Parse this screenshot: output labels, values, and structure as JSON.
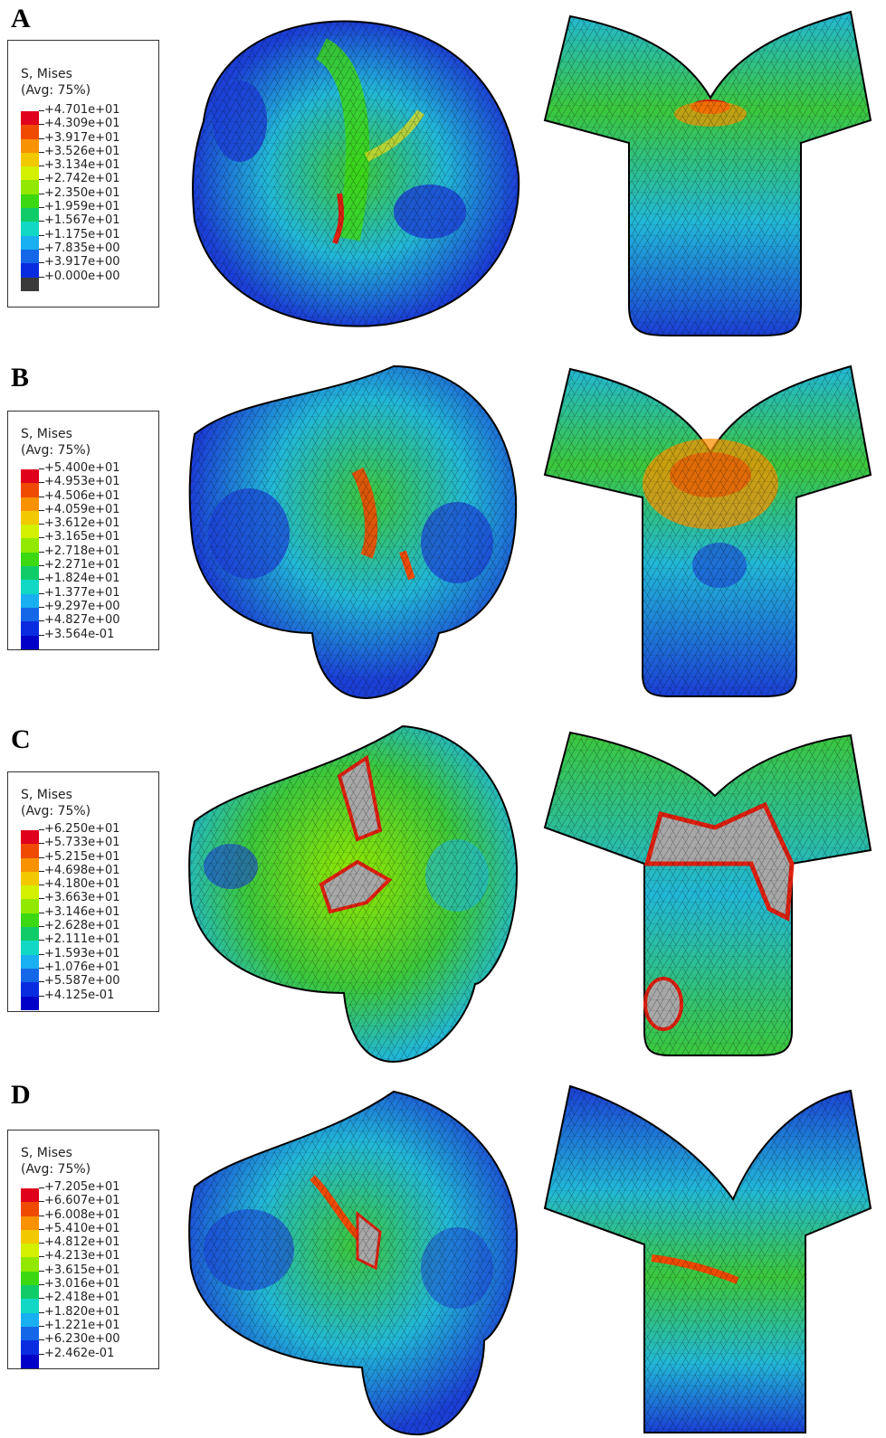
{
  "panels": [
    {
      "letter": "A",
      "legend_title_1": "S, Mises",
      "legend_title_2": "(Avg: 75%)",
      "legend_values": [
        "+4.701e+01",
        "+4.309e+01",
        "+3.917e+01",
        "+3.526e+01",
        "+3.134e+01",
        "+2.742e+01",
        "+2.350e+01",
        "+1.959e+01",
        "+1.567e+01",
        "+1.175e+01",
        "+7.835e+00",
        "+3.917e+00",
        "+0.000e+00"
      ]
    },
    {
      "letter": "B",
      "legend_title_1": "S, Mises",
      "legend_title_2": "(Avg: 75%)",
      "legend_values": [
        "+5.400e+01",
        "+4.953e+01",
        "+4.506e+01",
        "+4.059e+01",
        "+3.612e+01",
        "+3.165e+01",
        "+2.718e+01",
        "+2.271e+01",
        "+1.824e+01",
        "+1.377e+01",
        "+9.297e+00",
        "+4.827e+00",
        "+3.564e-01"
      ]
    },
    {
      "letter": "C",
      "legend_title_1": "S, Mises",
      "legend_title_2": "(Avg: 75%)",
      "legend_values": [
        "+6.250e+01",
        "+5.733e+01",
        "+5.215e+01",
        "+4.698e+01",
        "+4.180e+01",
        "+3.663e+01",
        "+3.146e+01",
        "+2.628e+01",
        "+2.111e+01",
        "+1.593e+01",
        "+1.076e+01",
        "+5.587e+00",
        "+4.125e-01"
      ]
    },
    {
      "letter": "D",
      "legend_title_1": "S, Mises",
      "legend_title_2": "(Avg: 75%)",
      "legend_values": [
        "+7.205e+01",
        "+6.607e+01",
        "+6.008e+01",
        "+5.410e+01",
        "+4.812e+01",
        "+4.213e+01",
        "+3.615e+01",
        "+3.016e+01",
        "+2.418e+01",
        "+1.820e+01",
        "+1.221e+01",
        "+6.230e+00",
        "+2.462e-01"
      ]
    }
  ],
  "colors": {
    "scale": [
      "#e0001c",
      "#f04a00",
      "#f89200",
      "#f2c800",
      "#d2f000",
      "#92e800",
      "#3cd812",
      "#10cc68",
      "#10d8c4",
      "#18b0f0",
      "#1468e8",
      "#0a2ce0",
      "#0000c8"
    ],
    "scale_bottom_A": "#3a3a3a",
    "mesh_blue": "#1b3fd6",
    "mesh_cyan": "#22b8d8",
    "mesh_green": "#3cc83c",
    "mesh_yellow": "#d8d820",
    "mesh_red": "#e02010",
    "mesh_grey": "#a8a8a8"
  }
}
